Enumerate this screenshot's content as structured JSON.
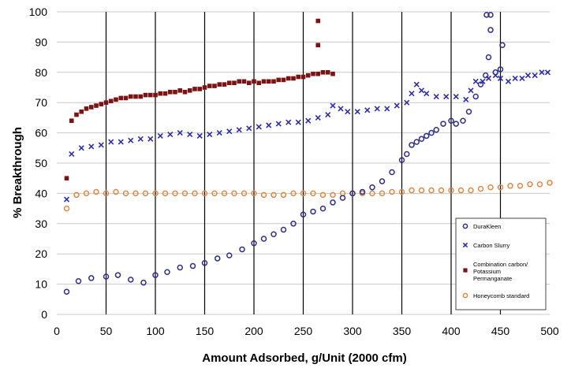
{
  "chart_data": {
    "type": "scatter",
    "title": "",
    "xlabel": "Amount Adsorbed, g/Unit (2000 cfm)",
    "ylabel": "% Breakthrough",
    "xlim": [
      0,
      500
    ],
    "ylim": [
      0,
      100
    ],
    "xticks": [
      "0",
      "50",
      "100",
      "150",
      "200",
      "250",
      "300",
      "350",
      "400",
      "450",
      "500"
    ],
    "yticks": [
      "0",
      "10",
      "20",
      "30",
      "40",
      "50",
      "60",
      "70",
      "80",
      "90",
      "100"
    ],
    "grid": {
      "horizontal": true,
      "vertical": true
    },
    "legend_position": "bottom-right",
    "series": [
      {
        "name": "DuraKleen",
        "marker": "open-circle",
        "color": "#2e2e8a",
        "points": [
          [
            10,
            7.5
          ],
          [
            22,
            11
          ],
          [
            35,
            12
          ],
          [
            50,
            12.5
          ],
          [
            62,
            13
          ],
          [
            75,
            11.5
          ],
          [
            88,
            10.5
          ],
          [
            100,
            13
          ],
          [
            112,
            14
          ],
          [
            125,
            15.5
          ],
          [
            138,
            16
          ],
          [
            150,
            17
          ],
          [
            163,
            18.5
          ],
          [
            175,
            19.5
          ],
          [
            188,
            21.5
          ],
          [
            200,
            23.5
          ],
          [
            210,
            25
          ],
          [
            220,
            26.5
          ],
          [
            230,
            28
          ],
          [
            240,
            30
          ],
          [
            250,
            33
          ],
          [
            260,
            34
          ],
          [
            270,
            35
          ],
          [
            280,
            37
          ],
          [
            290,
            38.5
          ],
          [
            300,
            40
          ],
          [
            310,
            40.5
          ],
          [
            320,
            42
          ],
          [
            330,
            44
          ],
          [
            340,
            47
          ],
          [
            350,
            51
          ],
          [
            355,
            53
          ],
          [
            360,
            56
          ],
          [
            365,
            57
          ],
          [
            370,
            58
          ],
          [
            375,
            59
          ],
          [
            380,
            60
          ],
          [
            385,
            61
          ],
          [
            392,
            63
          ],
          [
            400,
            64
          ],
          [
            405,
            63
          ],
          [
            412,
            64
          ],
          [
            418,
            67
          ],
          [
            425,
            72
          ],
          [
            430,
            76
          ],
          [
            435,
            79
          ],
          [
            438,
            85
          ],
          [
            440,
            94
          ],
          [
            445,
            80
          ],
          [
            450,
            81
          ],
          [
            452,
            89
          ],
          [
            436,
            99
          ],
          [
            440,
            99
          ]
        ]
      },
      {
        "name": "Carbon Slurry",
        "marker": "x",
        "color": "#2e2ea8",
        "points": [
          [
            10,
            38
          ],
          [
            15,
            53
          ],
          [
            25,
            55
          ],
          [
            35,
            55.5
          ],
          [
            45,
            56
          ],
          [
            55,
            57
          ],
          [
            65,
            57
          ],
          [
            75,
            57.5
          ],
          [
            85,
            58
          ],
          [
            95,
            58
          ],
          [
            105,
            59
          ],
          [
            115,
            59.5
          ],
          [
            125,
            60
          ],
          [
            135,
            59.5
          ],
          [
            145,
            59
          ],
          [
            155,
            59.5
          ],
          [
            165,
            60
          ],
          [
            175,
            60.5
          ],
          [
            185,
            61
          ],
          [
            195,
            61.5
          ],
          [
            205,
            62
          ],
          [
            215,
            62.5
          ],
          [
            225,
            63
          ],
          [
            235,
            63.5
          ],
          [
            245,
            63.5
          ],
          [
            255,
            64
          ],
          [
            265,
            65
          ],
          [
            275,
            66
          ],
          [
            280,
            69
          ],
          [
            288,
            68
          ],
          [
            295,
            67
          ],
          [
            305,
            67
          ],
          [
            315,
            67.5
          ],
          [
            325,
            68
          ],
          [
            335,
            68
          ],
          [
            345,
            69
          ],
          [
            355,
            70
          ],
          [
            360,
            73
          ],
          [
            365,
            76
          ],
          [
            370,
            74
          ],
          [
            375,
            73
          ],
          [
            385,
            72
          ],
          [
            395,
            72
          ],
          [
            405,
            72
          ],
          [
            415,
            71
          ],
          [
            420,
            74
          ],
          [
            425,
            77
          ],
          [
            432,
            77
          ],
          [
            438,
            78
          ],
          [
            445,
            79
          ],
          [
            450,
            78
          ],
          [
            458,
            77
          ],
          [
            465,
            78
          ],
          [
            472,
            78
          ],
          [
            478,
            79
          ],
          [
            485,
            79
          ],
          [
            492,
            80
          ],
          [
            498,
            80
          ]
        ]
      },
      {
        "name": "Combination carbon/ Potassium Permanganate",
        "marker": "filled-square",
        "color": "#7a1414",
        "points": [
          [
            10,
            45
          ],
          [
            15,
            64
          ],
          [
            20,
            66
          ],
          [
            25,
            67
          ],
          [
            30,
            68
          ],
          [
            35,
            68.5
          ],
          [
            40,
            69
          ],
          [
            45,
            69.5
          ],
          [
            50,
            70
          ],
          [
            55,
            70.5
          ],
          [
            60,
            71
          ],
          [
            65,
            71.5
          ],
          [
            70,
            71.5
          ],
          [
            75,
            72
          ],
          [
            80,
            72
          ],
          [
            85,
            72
          ],
          [
            90,
            72.5
          ],
          [
            95,
            72.5
          ],
          [
            100,
            72.5
          ],
          [
            105,
            73
          ],
          [
            110,
            73
          ],
          [
            115,
            73.5
          ],
          [
            120,
            73.5
          ],
          [
            125,
            74
          ],
          [
            130,
            73.5
          ],
          [
            135,
            74
          ],
          [
            140,
            74.5
          ],
          [
            145,
            74.5
          ],
          [
            150,
            75
          ],
          [
            155,
            75.5
          ],
          [
            160,
            75.5
          ],
          [
            165,
            76
          ],
          [
            170,
            76
          ],
          [
            175,
            76.5
          ],
          [
            180,
            76.5
          ],
          [
            185,
            77
          ],
          [
            190,
            77
          ],
          [
            195,
            76.5
          ],
          [
            200,
            77
          ],
          [
            205,
            76.5
          ],
          [
            210,
            77
          ],
          [
            215,
            77
          ],
          [
            220,
            77
          ],
          [
            225,
            77.5
          ],
          [
            230,
            77.5
          ],
          [
            235,
            78
          ],
          [
            240,
            78
          ],
          [
            245,
            78.5
          ],
          [
            250,
            78.5
          ],
          [
            255,
            79
          ],
          [
            260,
            79.5
          ],
          [
            265,
            79.5
          ],
          [
            270,
            80
          ],
          [
            275,
            80
          ],
          [
            280,
            79.5
          ],
          [
            265,
            97
          ],
          [
            265,
            89
          ]
        ]
      },
      {
        "name": "Honeycomb standard",
        "marker": "open-circle",
        "color": "#e08a4a",
        "points": [
          [
            10,
            35
          ],
          [
            20,
            39.5
          ],
          [
            30,
            40
          ],
          [
            40,
            40.5
          ],
          [
            50,
            40
          ],
          [
            60,
            40.5
          ],
          [
            70,
            40
          ],
          [
            80,
            40
          ],
          [
            90,
            40
          ],
          [
            100,
            40
          ],
          [
            110,
            40
          ],
          [
            120,
            40
          ],
          [
            130,
            40
          ],
          [
            140,
            40
          ],
          [
            150,
            40
          ],
          [
            160,
            40
          ],
          [
            170,
            40
          ],
          [
            180,
            40
          ],
          [
            190,
            40
          ],
          [
            200,
            40
          ],
          [
            210,
            39.5
          ],
          [
            220,
            39.5
          ],
          [
            230,
            39.5
          ],
          [
            240,
            40
          ],
          [
            250,
            40
          ],
          [
            260,
            40
          ],
          [
            270,
            39.5
          ],
          [
            280,
            39.5
          ],
          [
            290,
            40
          ],
          [
            300,
            40
          ],
          [
            310,
            40
          ],
          [
            320,
            40
          ],
          [
            330,
            40
          ],
          [
            340,
            40.5
          ],
          [
            350,
            40.5
          ],
          [
            360,
            41
          ],
          [
            370,
            41
          ],
          [
            380,
            41
          ],
          [
            390,
            41
          ],
          [
            400,
            41
          ],
          [
            410,
            41
          ],
          [
            420,
            41
          ],
          [
            430,
            41.5
          ],
          [
            440,
            42
          ],
          [
            450,
            42
          ],
          [
            460,
            42.5
          ],
          [
            470,
            42.5
          ],
          [
            480,
            43
          ],
          [
            490,
            43
          ],
          [
            500,
            43.5
          ]
        ]
      }
    ]
  }
}
